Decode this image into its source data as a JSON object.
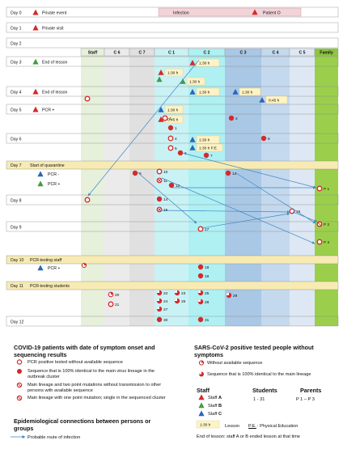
{
  "columns": [
    "Staff",
    "C 6",
    "C 7",
    "C 1",
    "C 2",
    "C 3",
    "C 4",
    "C 5",
    "Family"
  ],
  "column_colors": [
    "#e6f0db",
    "#ebebeb",
    "#e0e0e0",
    "#c9f2f5",
    "#aff0f3",
    "#a9c8e6",
    "#c4d9ee",
    "#dde8f4",
    "#9bcf4b"
  ],
  "days": [
    {
      "label": "Day 0",
      "note": "Private event",
      "marker": "red"
    },
    {
      "label": "Day 1",
      "note": "Private visit",
      "marker": "red"
    },
    {
      "label": "Day 2",
      "note": "",
      "marker": ""
    },
    {
      "label": "Day 3",
      "note": "End of lesson",
      "marker": "green"
    },
    {
      "label": "Day 4",
      "note": "End of lesson",
      "marker": "red"
    },
    {
      "label": "Day 5",
      "note": "PCR +",
      "marker": "red"
    },
    {
      "label": "Day 6",
      "note": "",
      "marker": ""
    },
    {
      "label": "Day 7",
      "note": "Start of quarantine",
      "marker": ""
    },
    {
      "label": "Day 8",
      "note": "",
      "marker": ""
    },
    {
      "label": "Day 9",
      "note": "",
      "marker": ""
    },
    {
      "label": "Day 10",
      "note": "PCR-testing staff",
      "marker": ""
    },
    {
      "label": "Day 11",
      "note": "PCR-testing students",
      "marker": ""
    },
    {
      "label": "Day 12",
      "note": "",
      "marker": ""
    }
  ],
  "day7_pcr": [
    {
      "label": "PCR -",
      "marker": "blue"
    },
    {
      "label": "PCR +",
      "marker": "green"
    }
  ],
  "day10_pcr": {
    "label": "PCR +",
    "marker": "blue"
  },
  "event_bar": {
    "left": "Infection",
    "right": "Patient O"
  },
  "lesson_labels": [
    "1:30 h",
    "1:30 h",
    "1:30 h",
    "1:30 h",
    "0:45 h",
    "1:30 h",
    "0:45 h",
    "1:30 h",
    "1:30 h P.E."
  ],
  "lesson_ids": [
    "1:30 h",
    "1:30 h",
    "1:30 h",
    "1:30 h",
    "1:30 h",
    "1:30 h",
    "1:30 h",
    "0:45 h",
    "1:30 h",
    "0:45 h",
    "1:30 h",
    "1:30 h P.E."
  ],
  "patients": [
    "1",
    "2",
    "3",
    "4",
    "5",
    "6",
    "7",
    "8",
    "9",
    "10",
    "11",
    "12",
    "13",
    "14",
    "15",
    "16",
    "17",
    "18",
    "19",
    "20",
    "21",
    "22",
    "23",
    "24",
    "25",
    "26",
    "27",
    "28",
    "29",
    "30",
    "31"
  ],
  "family_labels": [
    "P 1",
    "P 2",
    "P 3"
  ],
  "legend": {
    "title": "COVID-19 patients with date of symptom onset and sequencing results",
    "items": [
      "PCR positive tested without available sequence",
      "Sequence that is 100% identical to the main virus lineage in the outbreak cluster",
      "Main lineage and two point mutations without transmission to other persons with available sequence",
      "Main lineage with one point mutation; single in the sequenced cluster"
    ],
    "epi_title": "Epidemiological connections between persons or groups",
    "epi_item": "Probable route of infection",
    "asym_title": "SARS-CoV-2 positive tested people without symptoms",
    "asym_items": [
      "Without available sequence",
      "Sequence that is 100% identical to the main lineage"
    ],
    "staff_title": "Staff",
    "students_title": "Students",
    "parents_title": "Parents",
    "staff_prefix": "Staff",
    "staff_items": [
      {
        "letter": "A",
        "color": "#d42a2a"
      },
      {
        "letter": "B",
        "color": "#3f9d3f"
      },
      {
        "letter": "C",
        "color": "#2a66b8"
      }
    ],
    "students_range": "1 - 31",
    "parents_range": "P 1 – P 3",
    "lesson_box": "1:30 h",
    "lesson_label": "Lesson",
    "pe_abbr": "P.E.",
    "pe_text": ": Physical Education",
    "footnote": "End of lesson: staff A or B ended lesson at that time"
  },
  "colors": {
    "red": "#d42a2a",
    "green": "#3f9d3f",
    "blue": "#2a66b8",
    "lesson_bg": "#fdf3c6",
    "day_band": "#f7ebb3",
    "arrow": "#3d87c4"
  }
}
